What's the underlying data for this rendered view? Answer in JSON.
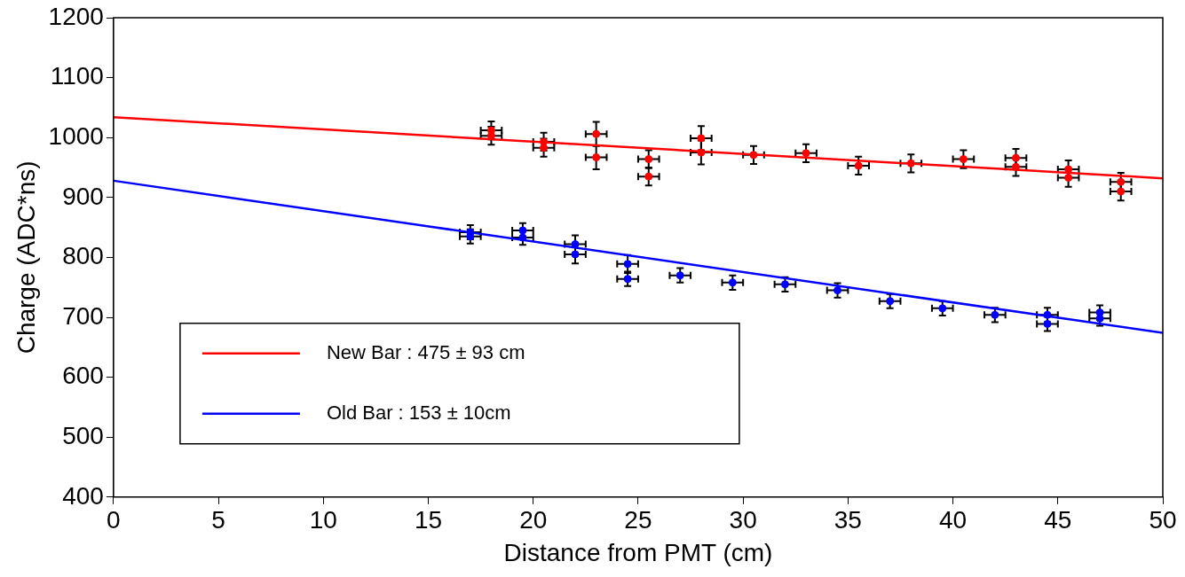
{
  "chart_data": {
    "type": "scatter",
    "xlabel": "Distance from PMT (cm)",
    "ylabel": "Charge (ADC*ns)",
    "xlim": [
      0,
      50
    ],
    "xticks": [
      0,
      5,
      10,
      15,
      20,
      25,
      30,
      35,
      40,
      45,
      50
    ],
    "ylim": [
      400,
      1200
    ],
    "yticks": [
      400,
      500,
      600,
      700,
      800,
      900,
      1000,
      1100,
      1200
    ],
    "grid": false,
    "legend": "bottom left",
    "marker": "circle",
    "series": [
      {
        "type": "line",
        "name": "New Bar : 475 ± 93 cm",
        "color": "#ff0000",
        "x": [
          0,
          50
        ],
        "values": [
          1034,
          932
        ],
        "marker": "none",
        "line_style": "solid"
      },
      {
        "type": "line",
        "name": "Old Bar : 153 ± 10cm",
        "color": "#0000ff",
        "x": [
          0,
          50
        ],
        "values": [
          928,
          674
        ],
        "marker": "none",
        "line_style": "solid"
      },
      {
        "type": "scatter",
        "color": "#ff0000",
        "x": [
          18,
          18,
          20.5,
          20.5,
          23,
          23,
          25.5,
          25.5,
          28,
          28,
          30.5,
          33,
          35.5,
          38,
          40.5,
          43,
          43,
          45.5,
          45.5,
          48,
          48
        ],
        "values": [
          1012,
          1003,
          993,
          983,
          1006,
          967,
          964,
          935,
          999,
          975,
          971,
          974,
          953,
          957,
          964,
          966,
          951,
          947,
          933,
          926,
          910
        ],
        "errors": [
          15,
          15,
          15,
          15,
          20,
          20,
          15,
          15,
          20,
          20,
          15,
          15,
          15,
          15,
          15,
          15,
          15,
          15,
          15,
          15,
          15
        ],
        "xerrors": [
          0.5,
          0.5,
          0.5,
          0.5,
          0.5,
          0.5,
          0.5,
          0.5,
          0.5,
          0.5,
          0.5,
          0.5,
          0.5,
          0.5,
          0.5,
          0.5,
          0.5,
          0.5,
          0.5,
          0.5,
          0.5
        ]
      },
      {
        "type": "scatter",
        "color": "#0000ff",
        "x": [
          17,
          17,
          19.5,
          19.5,
          22,
          22,
          24.5,
          24.5,
          27,
          29.5,
          32,
          34.5,
          37,
          39.5,
          42,
          44.5,
          44.5,
          47,
          47
        ],
        "values": [
          842,
          835,
          845,
          833,
          822,
          805,
          789,
          764,
          770,
          758,
          755,
          745,
          727,
          715,
          704,
          704,
          689,
          708,
          698
        ],
        "errors": [
          12,
          12,
          12,
          12,
          15,
          15,
          15,
          12,
          12,
          12,
          12,
          12,
          12,
          12,
          12,
          12,
          12,
          12,
          12
        ],
        "xerrors": [
          0.5,
          0.5,
          0.5,
          0.5,
          0.5,
          0.5,
          0.5,
          0.5,
          0.5,
          0.5,
          0.5,
          0.5,
          0.5,
          0.5,
          0.5,
          0.5,
          0.5,
          0.5,
          0.5
        ]
      }
    ]
  }
}
